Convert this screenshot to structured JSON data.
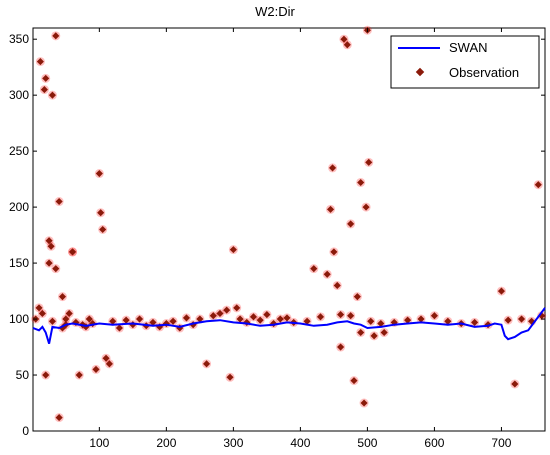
{
  "chart_data": {
    "type": "line",
    "title": "W2:Dir",
    "xlabel": "",
    "ylabel": "",
    "xlim": [
      1,
      765
    ],
    "ylim": [
      0,
      360
    ],
    "xticks": [
      100,
      200,
      300,
      400,
      500,
      600,
      700
    ],
    "yticks": [
      0,
      50,
      100,
      150,
      200,
      250,
      300,
      350
    ],
    "grid": false,
    "legend_position": "top-right",
    "colors": {
      "swan": "#0000ff",
      "observation": "#8b1a0a",
      "observation_halo": "#ff0000"
    },
    "series": [
      {
        "name": "SWAN",
        "style": "line",
        "x": [
          1,
          10,
          15,
          20,
          25,
          30,
          40,
          50,
          60,
          80,
          100,
          120,
          150,
          180,
          200,
          220,
          240,
          260,
          280,
          300,
          320,
          340,
          360,
          380,
          400,
          420,
          440,
          455,
          470,
          480,
          490,
          500,
          520,
          540,
          560,
          580,
          600,
          620,
          640,
          660,
          680,
          690,
          700,
          705,
          710,
          720,
          730,
          740,
          750,
          765
        ],
        "y": [
          92,
          90,
          93,
          88,
          78,
          93,
          92,
          95,
          96,
          94,
          96,
          95,
          96,
          94,
          95,
          93,
          96,
          98,
          99,
          97,
          96,
          94,
          95,
          97,
          96,
          94,
          95,
          97,
          98,
          96,
          95,
          92,
          93,
          95,
          96,
          97,
          96,
          95,
          96,
          93,
          94,
          96,
          95,
          85,
          82,
          84,
          88,
          90,
          98,
          110
        ]
      },
      {
        "name": "Observation",
        "style": "markers",
        "x": [
          10,
          12,
          18,
          20,
          25,
          28,
          30,
          35,
          40,
          45,
          50,
          55,
          60,
          70,
          100,
          102,
          105,
          110,
          295,
          300,
          305,
          440,
          445,
          448,
          450,
          455,
          460,
          465,
          470,
          475,
          480,
          485,
          490,
          495,
          498,
          500,
          502,
          510,
          525,
          700,
          720,
          755,
          20,
          25,
          35,
          40,
          60,
          95,
          115,
          260,
          420,
          5,
          15,
          30,
          45,
          50,
          65,
          75,
          80,
          85,
          90,
          120,
          130,
          140,
          150,
          160,
          170,
          180,
          190,
          200,
          210,
          220,
          230,
          240,
          250,
          270,
          280,
          290,
          310,
          320,
          330,
          340,
          350,
          360,
          370,
          380,
          390,
          410,
          430,
          460,
          475,
          490,
          505,
          520,
          540,
          560,
          580,
          600,
          620,
          640,
          660,
          680,
          710,
          730,
          745,
          760
        ],
        "y": [
          110,
          330,
          305,
          315,
          170,
          165,
          300,
          353,
          205,
          120,
          95,
          105,
          160,
          50,
          230,
          195,
          180,
          65,
          48,
          162,
          110,
          140,
          198,
          235,
          160,
          130,
          75,
          350,
          345,
          185,
          45,
          120,
          222,
          25,
          200,
          358,
          240,
          85,
          88,
          125,
          42,
          220,
          50,
          150,
          145,
          12,
          160,
          55,
          60,
          60,
          145,
          100,
          105,
          98,
          92,
          100,
          97,
          95,
          93,
          100,
          96,
          98,
          92,
          99,
          95,
          100,
          94,
          97,
          93,
          96,
          98,
          92,
          101,
          95,
          100,
          103,
          105,
          108,
          100,
          97,
          102,
          99,
          104,
          96,
          100,
          101,
          97,
          98,
          102,
          104,
          103,
          88,
          98,
          96,
          97,
          99,
          100,
          103,
          98,
          96,
          97,
          95,
          99,
          100,
          98,
          103
        ]
      }
    ]
  }
}
